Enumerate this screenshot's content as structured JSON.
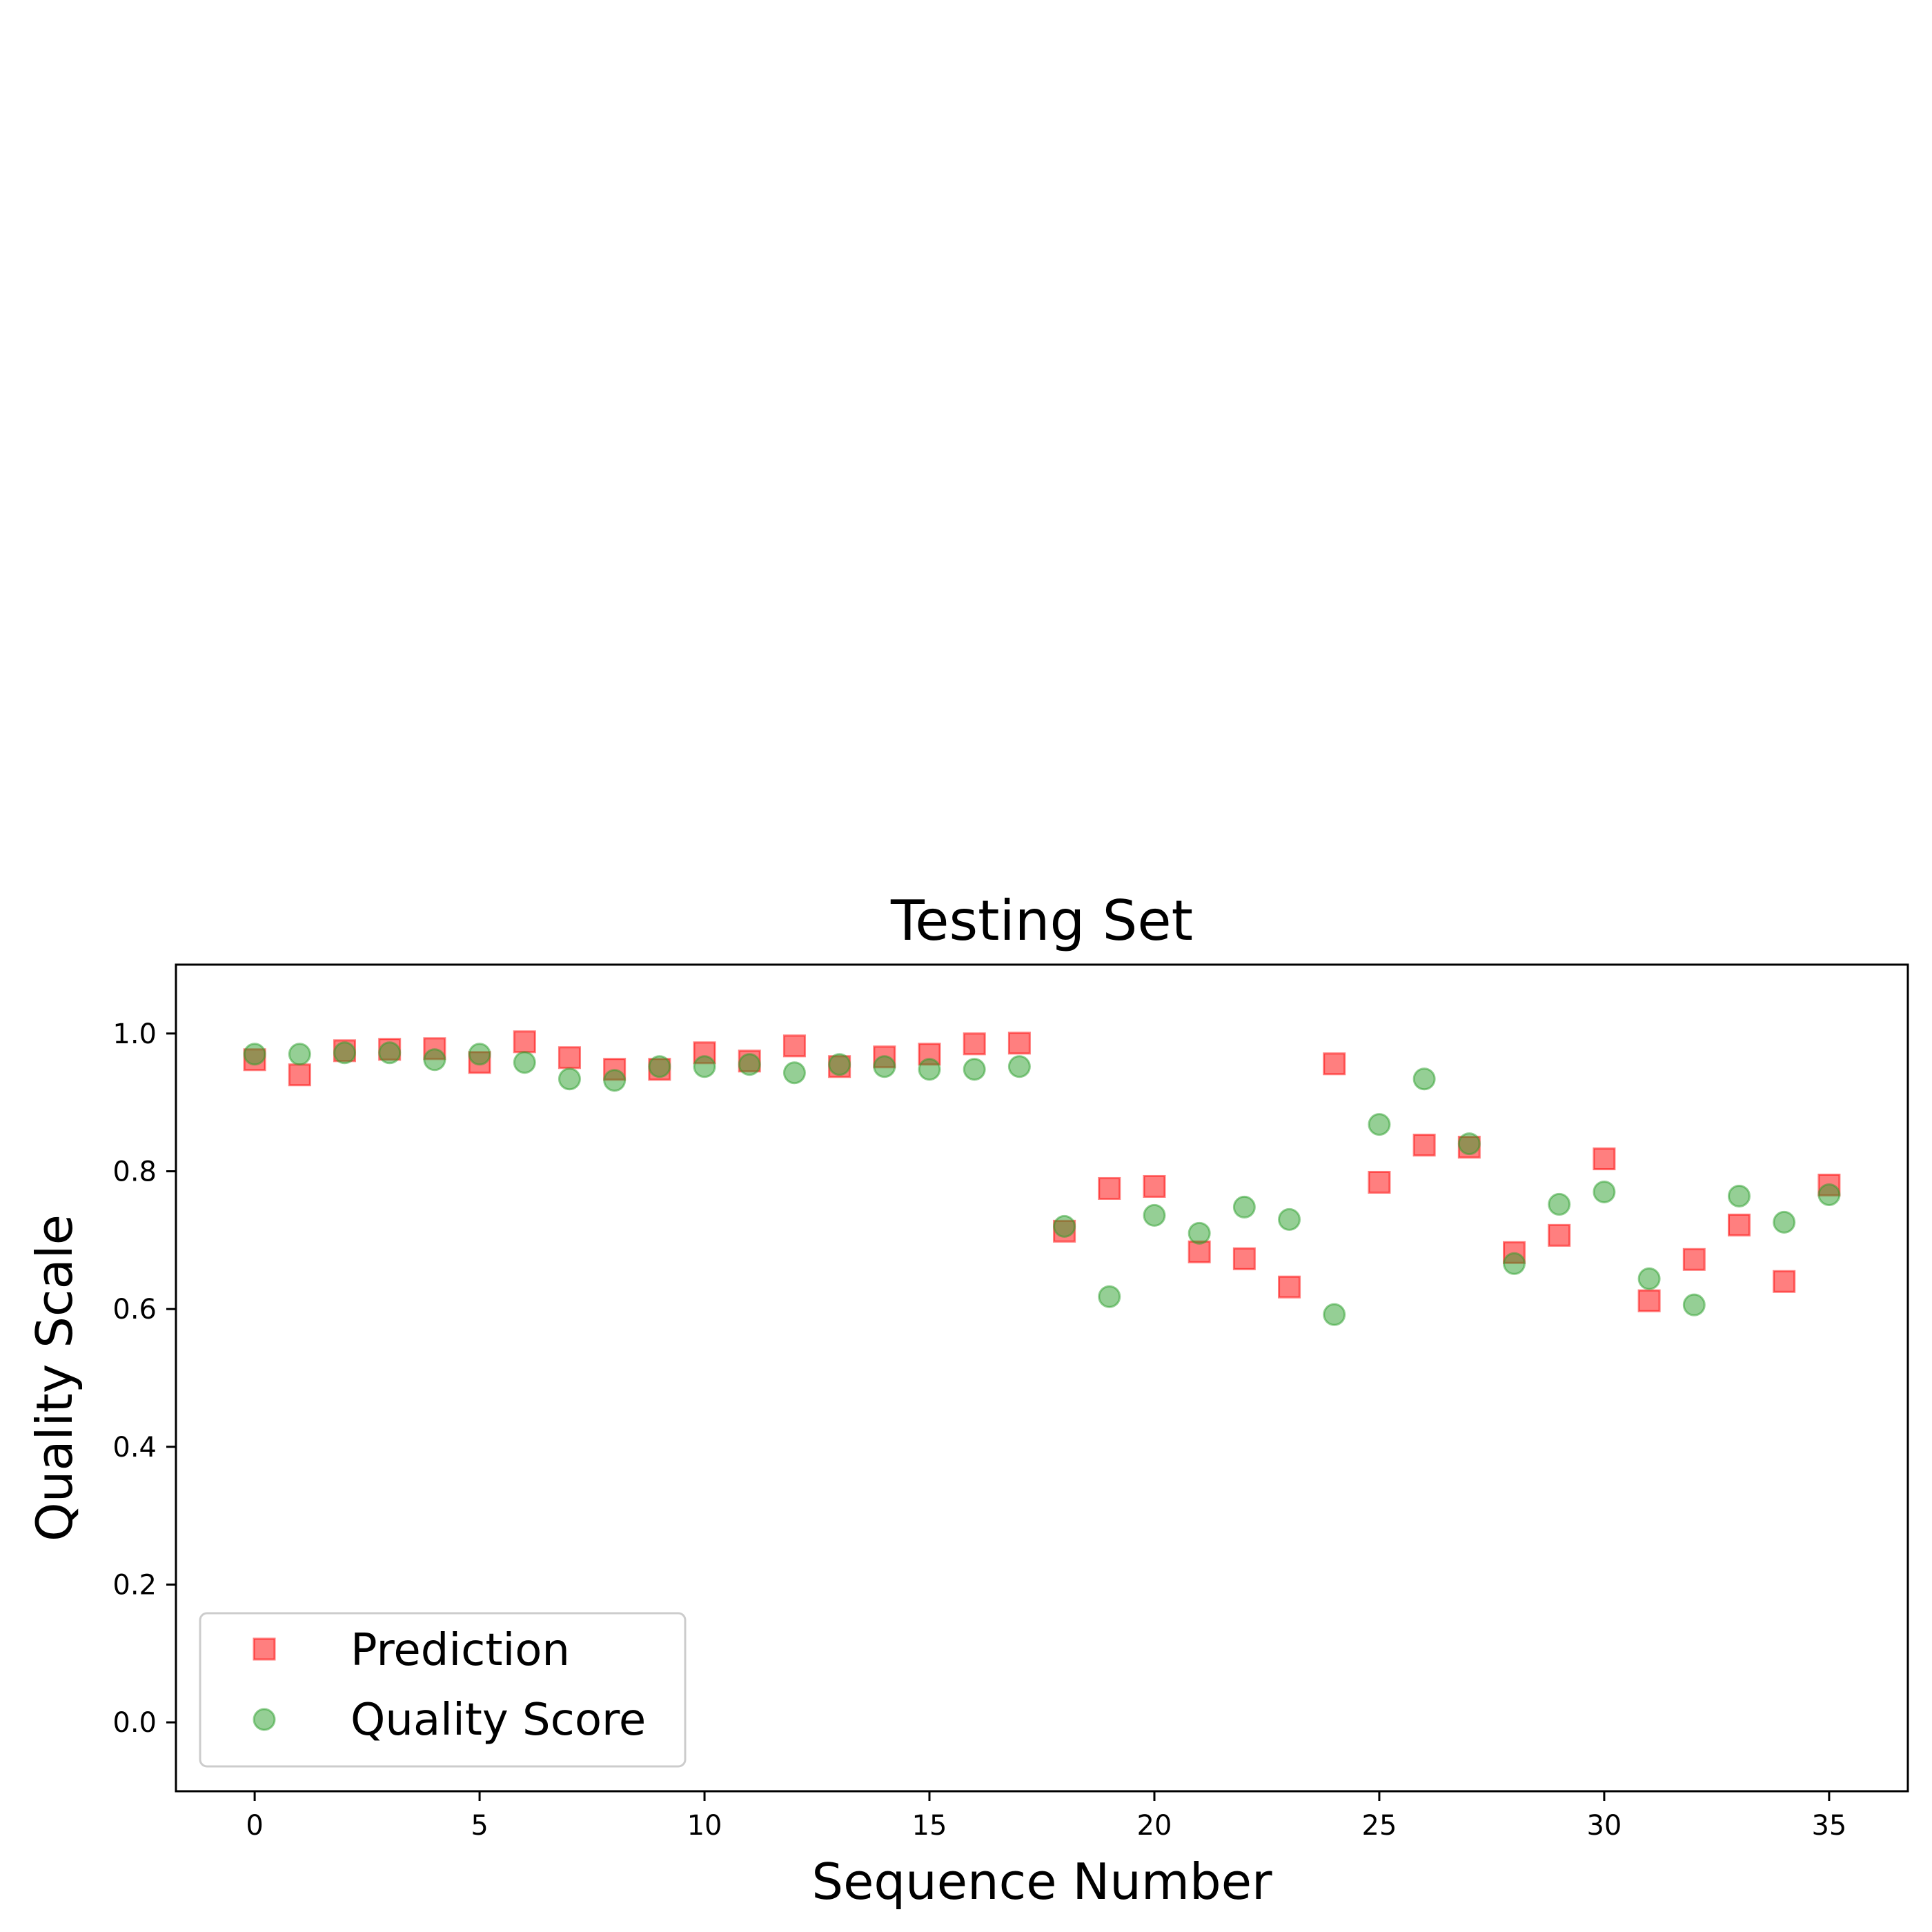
{
  "chart_data": {
    "type": "scatter",
    "title": "Testing Set",
    "xlabel": "Sequence Number",
    "ylabel": "Quality Scale",
    "xlim": [
      -1.75,
      36.75
    ],
    "ylim": [
      -0.1,
      1.1
    ],
    "xticks": [
      0,
      5,
      10,
      15,
      20,
      25,
      30,
      35
    ],
    "xtick_labels": [
      "0",
      "5",
      "10",
      "15",
      "20",
      "25",
      "30",
      "35"
    ],
    "yticks": [
      0.0,
      0.2,
      0.4,
      0.6,
      0.8,
      1.0
    ],
    "ytick_labels": [
      "0.0",
      "0.2",
      "0.4",
      "0.6",
      "0.8",
      "1.0"
    ],
    "grid": false,
    "legend_position": "bottom-left",
    "series": [
      {
        "name": "Prediction",
        "marker": "square",
        "color": "#ff0000",
        "x": [
          0,
          1,
          2,
          3,
          4,
          5,
          6,
          7,
          8,
          9,
          10,
          11,
          12,
          13,
          14,
          15,
          16,
          17,
          18,
          19,
          20,
          21,
          22,
          23,
          24,
          25,
          26,
          27,
          28,
          29,
          30,
          31,
          32,
          33,
          34,
          35
        ],
        "y": [
          0.962,
          0.94,
          0.975,
          0.977,
          0.978,
          0.958,
          0.988,
          0.965,
          0.948,
          0.948,
          0.972,
          0.96,
          0.982,
          0.952,
          0.966,
          0.97,
          0.985,
          0.986,
          0.713,
          0.775,
          0.778,
          0.683,
          0.673,
          0.632,
          0.956,
          0.784,
          0.838,
          0.835,
          0.682,
          0.707,
          0.818,
          0.612,
          0.672,
          0.722,
          0.64,
          0.78
        ]
      },
      {
        "name": "Quality Score",
        "marker": "circle",
        "color": "#2ca02c",
        "x": [
          0,
          1,
          2,
          3,
          4,
          5,
          6,
          7,
          8,
          9,
          10,
          11,
          12,
          13,
          14,
          15,
          16,
          17,
          18,
          19,
          20,
          21,
          22,
          23,
          24,
          25,
          26,
          27,
          28,
          29,
          30,
          31,
          32,
          33,
          34,
          35
        ],
        "y": [
          0.97,
          0.97,
          0.972,
          0.972,
          0.962,
          0.97,
          0.958,
          0.934,
          0.932,
          0.952,
          0.952,
          0.955,
          0.943,
          0.955,
          0.952,
          0.948,
          0.948,
          0.952,
          0.72,
          0.618,
          0.736,
          0.71,
          0.748,
          0.73,
          0.592,
          0.868,
          0.934,
          0.84,
          0.666,
          0.752,
          0.77,
          0.644,
          0.606,
          0.764,
          0.726,
          0.766
        ]
      }
    ]
  }
}
